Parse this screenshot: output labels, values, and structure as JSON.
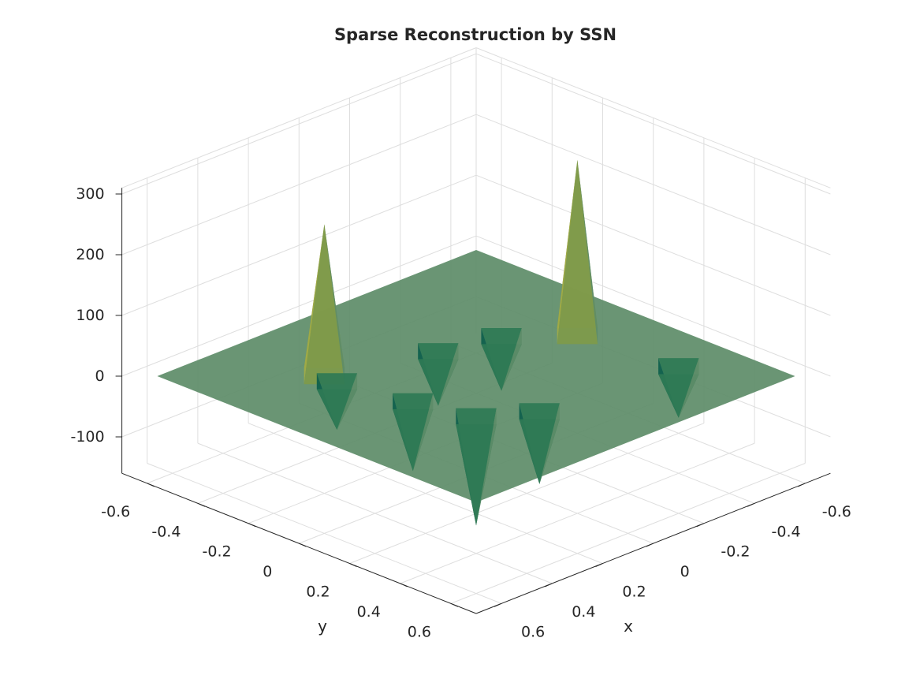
{
  "chart_data": {
    "type": "surface",
    "title": "Sparse Reconstruction by SSN",
    "xlabel": "x",
    "ylabel": "y",
    "zlabel": "",
    "xlim": [
      -0.7,
      0.7
    ],
    "ylim": [
      -0.7,
      0.7
    ],
    "zlim": [
      -160,
      310
    ],
    "xticks": [
      -0.6,
      -0.4,
      -0.2,
      0,
      0.2,
      0.4,
      0.6
    ],
    "yticks": [
      -0.6,
      -0.4,
      -0.2,
      0,
      0.2,
      0.4,
      0.6
    ],
    "zticks": [
      -100,
      0,
      100,
      200,
      300
    ],
    "xtick_labels": [
      "-0.6",
      "-0.4",
      "-0.2",
      "0",
      "0.2",
      "0.4",
      "0.6"
    ],
    "ytick_labels": [
      "-0.6",
      "-0.4",
      "-0.2",
      "0",
      "0.2",
      "0.4",
      "0.6"
    ],
    "ztick_labels": [
      "-100",
      "0",
      "100",
      "200",
      "300"
    ],
    "view": "azimuth -135, elevation 30",
    "grid": true,
    "colormap": [
      "#0d5e4c",
      "#2f7a55",
      "#5d8c68",
      "#7f9a4a",
      "#a3ab45"
    ],
    "surface_base": 0,
    "spikes": [
      {
        "x": 0.3,
        "y": -0.3,
        "z": 250
      },
      {
        "x": -0.4,
        "y": 0.0,
        "z": 290
      },
      {
        "x": 0.2,
        "y": 0.2,
        "z": -180
      },
      {
        "x": 0.05,
        "y": 0.3,
        "z": -120
      },
      {
        "x": 0.25,
        "y": 0.0,
        "z": -115
      },
      {
        "x": 0.3,
        "y": -0.25,
        "z": -80
      },
      {
        "x": -0.25,
        "y": -0.15,
        "z": -90
      },
      {
        "x": -0.05,
        "y": -0.2,
        "z": -90
      },
      {
        "x": -0.45,
        "y": 0.35,
        "z": -85
      }
    ]
  }
}
